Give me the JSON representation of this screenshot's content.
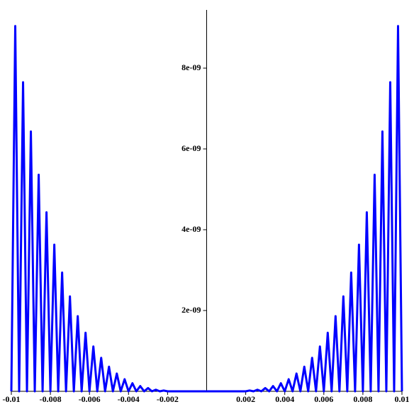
{
  "chart_data": {
    "type": "line",
    "x": [
      -0.01,
      -0.0098,
      -0.0096,
      -0.0094,
      -0.0092,
      -0.009,
      -0.0088,
      -0.0086,
      -0.0084,
      -0.0082,
      -0.008,
      -0.0078,
      -0.0076,
      -0.0074,
      -0.0072,
      -0.007,
      -0.0068,
      -0.0066,
      -0.0064,
      -0.0062,
      -0.006,
      -0.0058,
      -0.0056,
      -0.0054,
      -0.0052,
      -0.005,
      -0.0048,
      -0.0046,
      -0.0044,
      -0.0042,
      -0.004,
      -0.0038,
      -0.0036,
      -0.0034,
      -0.0032,
      -0.003,
      -0.0028,
      -0.0026,
      -0.0024,
      -0.0022,
      -0.002,
      0,
      0.002,
      0.0022,
      0.0024,
      0.0026,
      0.0028,
      0.003,
      0.0032,
      0.0034,
      0.0036,
      0.0038,
      0.004,
      0.0042,
      0.0044,
      0.0046,
      0.0048,
      0.005,
      0.0052,
      0.0054,
      0.0056,
      0.0058,
      0.006,
      0.0062,
      0.0064,
      0.0066,
      0.0068,
      0.007,
      0.0072,
      0.0074,
      0.0076,
      0.0078,
      0.008,
      0.0082,
      0.0084,
      0.0086,
      0.0088,
      0.009,
      0.0092,
      0.0094,
      0.0096,
      0.0098,
      0.01
    ],
    "series": [
      {
        "color": "#0000ff",
        "values": [
          0,
          9.04e-09,
          0,
          7.65e-09,
          0,
          6.43e-09,
          0,
          5.36e-09,
          0,
          4.43e-09,
          0,
          3.63e-09,
          0,
          2.94e-09,
          0,
          2.35e-09,
          0,
          1.86e-09,
          0,
          1.45e-09,
          0,
          1.11e-09,
          0,
          8.3e-10,
          0,
          6.1e-10,
          0,
          4.4e-10,
          0,
          3e-10,
          0,
          2e-10,
          0,
          1.3e-10,
          0,
          8e-11,
          0,
          4e-11,
          0,
          2e-11,
          0,
          0,
          0,
          2e-11,
          0,
          4e-11,
          0,
          8e-11,
          0,
          1.3e-10,
          0,
          2e-10,
          0,
          3e-10,
          0,
          4.4e-10,
          0,
          6.1e-10,
          0,
          8.3e-10,
          0,
          1.11e-09,
          0,
          1.45e-09,
          0,
          1.86e-09,
          0,
          2.35e-09,
          0,
          2.94e-09,
          0,
          3.63e-09,
          0,
          4.43e-09,
          0,
          5.36e-09,
          0,
          6.43e-09,
          0,
          7.65e-09,
          0,
          9.04e-09,
          0
        ]
      }
    ],
    "xlim": [
      -0.01,
      0.01
    ],
    "ylim": [
      0,
      9.44e-09
    ],
    "xticks": [
      -0.01,
      -0.008,
      -0.006,
      -0.004,
      -0.002,
      0.002,
      0.004,
      0.006,
      0.008,
      0.01
    ],
    "yticks": [
      {
        "value": 2e-09,
        "label": "2e-09"
      },
      {
        "value": 4e-09,
        "label": "4e-09"
      },
      {
        "value": 6e-09,
        "label": "6e-09"
      },
      {
        "value": 8e-09,
        "label": "8e-09"
      }
    ]
  }
}
